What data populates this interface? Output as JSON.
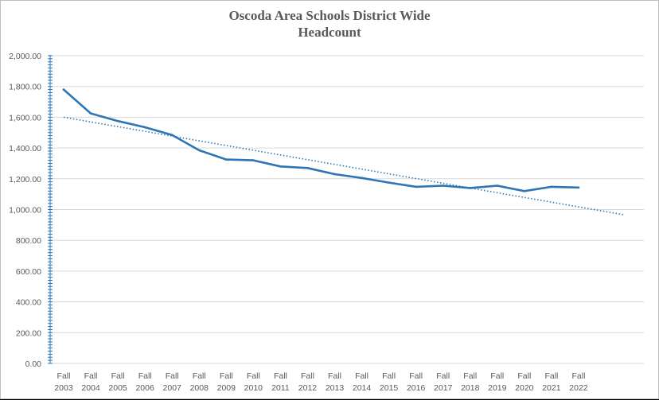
{
  "chart_data": {
    "type": "line",
    "title_lines": [
      "Oscoda Area Schools District Wide",
      "Headcount"
    ],
    "xlabel": "",
    "ylabel": "",
    "ylim": [
      0,
      2000
    ],
    "y_ticks": [
      "2,000.00",
      "1,800.00",
      "1,600.00",
      "1,400.00",
      "1,200.00",
      "1,000.00",
      "800.00",
      "600.00",
      "400.00",
      "200.00",
      "0.00"
    ],
    "y_tick_values": [
      2000,
      1800,
      1600,
      1400,
      1200,
      1000,
      800,
      600,
      400,
      200,
      0
    ],
    "categories": [
      [
        "Fall",
        "2003"
      ],
      [
        "Fall",
        "2004"
      ],
      [
        "Fall",
        "2005"
      ],
      [
        "Fall",
        "2006"
      ],
      [
        "Fall",
        "2007"
      ],
      [
        "Fall",
        "2008"
      ],
      [
        "Fall",
        "2009"
      ],
      [
        "Fall",
        "2010"
      ],
      [
        "Fall",
        "2011"
      ],
      [
        "Fall",
        "2012"
      ],
      [
        "Fall",
        "2013"
      ],
      [
        "Fall",
        "2014"
      ],
      [
        "Fall",
        "2015"
      ],
      [
        "Fall",
        "2016"
      ],
      [
        "Fall",
        "2017"
      ],
      [
        "Fall",
        "2018"
      ],
      [
        "Fall",
        "2019"
      ],
      [
        "Fall",
        "2020"
      ],
      [
        "Fall",
        "2021"
      ],
      [
        "Fall",
        "2022"
      ]
    ],
    "series": [
      {
        "values": [
          1780,
          1625,
          1575,
          1535,
          1485,
          1385,
          1325,
          1320,
          1280,
          1270,
          1230,
          1205,
          1175,
          1148,
          1155,
          1140,
          1155,
          1120,
          1148,
          1143
        ]
      }
    ],
    "trendline": {
      "style": "dotted",
      "start": 1600,
      "end": 965,
      "start_index": 0,
      "end_index": 21
    },
    "grid": true,
    "legend": "none",
    "colors": {
      "series": "#2e75b6",
      "grid": "#d9d9d9",
      "text": "#595959"
    }
  }
}
